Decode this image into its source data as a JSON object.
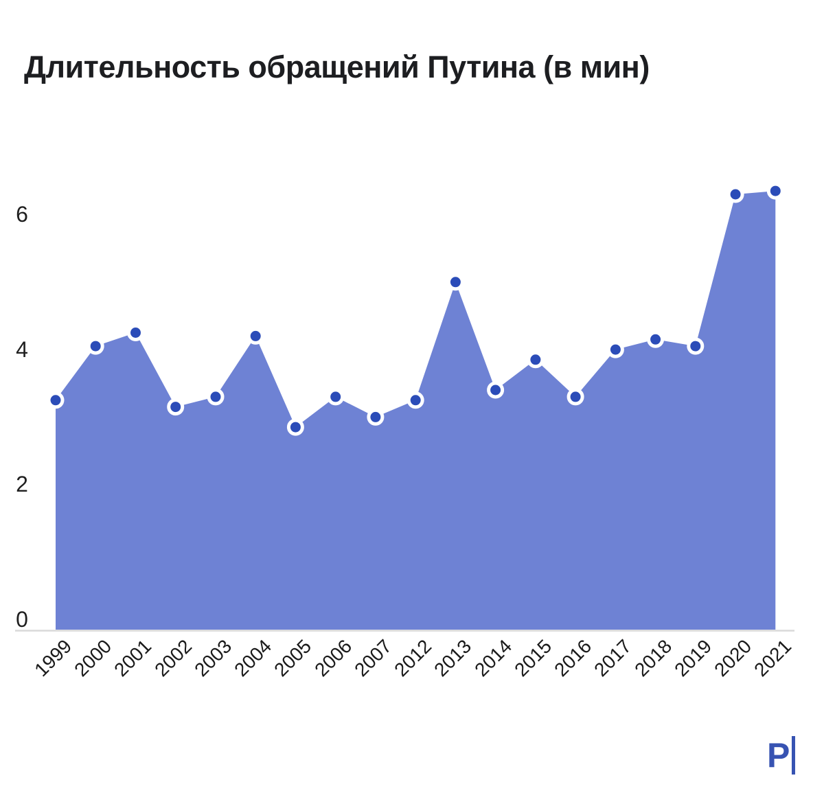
{
  "logo": {
    "text": "P"
  },
  "chart_data": {
    "type": "area",
    "title": "Длительность обращений Путина (в мин)",
    "categories": [
      "1999",
      "2000",
      "2001",
      "2002",
      "2003",
      "2004",
      "2005",
      "2006",
      "2007",
      "2012",
      "2013",
      "2014",
      "2015",
      "2016",
      "2017",
      "2018",
      "2019",
      "2020",
      "2021"
    ],
    "values": [
      3.4,
      4.2,
      4.4,
      3.3,
      3.45,
      4.35,
      3.0,
      3.45,
      3.15,
      3.4,
      5.15,
      3.55,
      4.0,
      3.45,
      4.15,
      4.3,
      4.2,
      6.45,
      6.5
    ],
    "y_ticks": [
      0,
      2,
      4,
      6
    ],
    "ylim": [
      0,
      6.6
    ],
    "xlabel": "",
    "ylabel": "",
    "grid": "baseline-only",
    "legend": "none",
    "marker": "dot",
    "colors": {
      "area": "#6e82d4",
      "dot": "#2b4cb8",
      "dot_ring": "#ffffff",
      "baseline": "#d9d9d9",
      "axis_text": "#1a1a1a",
      "title_text": "#1d1e21",
      "logo": "#3753b2"
    }
  }
}
